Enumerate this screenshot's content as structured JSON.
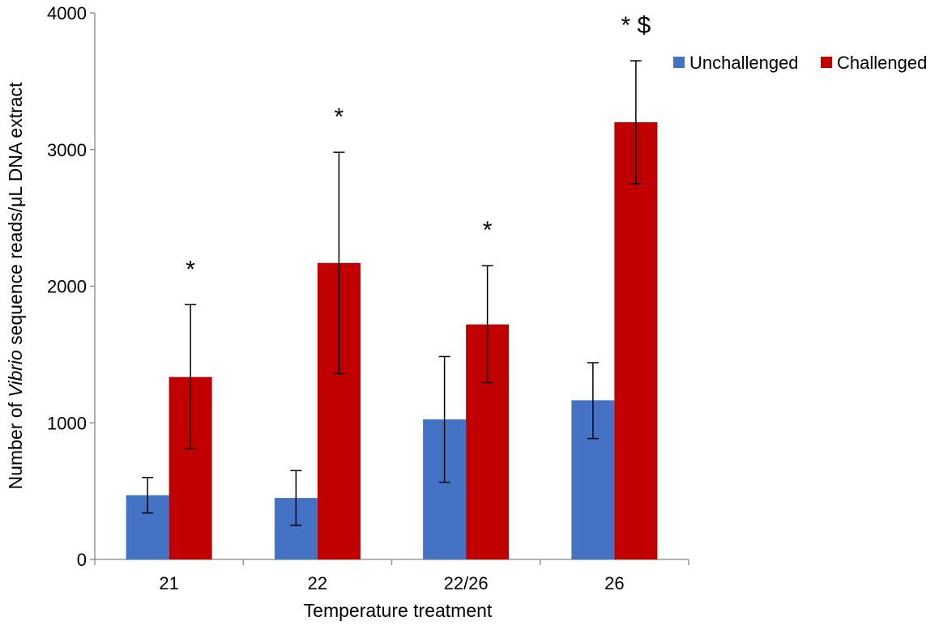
{
  "chart_data": {
    "type": "bar",
    "categories": [
      "21",
      "22",
      "22/26",
      "26"
    ],
    "series": [
      {
        "name": "Unchallenged",
        "color": "#4472C4",
        "values": [
          470,
          450,
          1025,
          1165
        ],
        "error_low": [
          340,
          250,
          565,
          885
        ],
        "error_high": [
          600,
          650,
          1485,
          1440
        ]
      },
      {
        "name": "Challenged",
        "color": "#C00000",
        "values": [
          1335,
          2170,
          1720,
          3200
        ],
        "error_low": [
          810,
          1360,
          1295,
          2750
        ],
        "error_high": [
          1865,
          2980,
          2150,
          3650
        ]
      }
    ],
    "annotations": [
      "*",
      "*",
      "*",
      "* $"
    ],
    "xlabel": "Temperature treatment",
    "ylabel_parts": [
      "Number of ",
      "Vibrio",
      " sequence reads/μL DNA extract"
    ],
    "ylim": [
      0,
      4000
    ],
    "yticks": [
      "0",
      "1000",
      "2000",
      "3000",
      "4000"
    ],
    "grid": false,
    "legend_position": "top-right"
  }
}
